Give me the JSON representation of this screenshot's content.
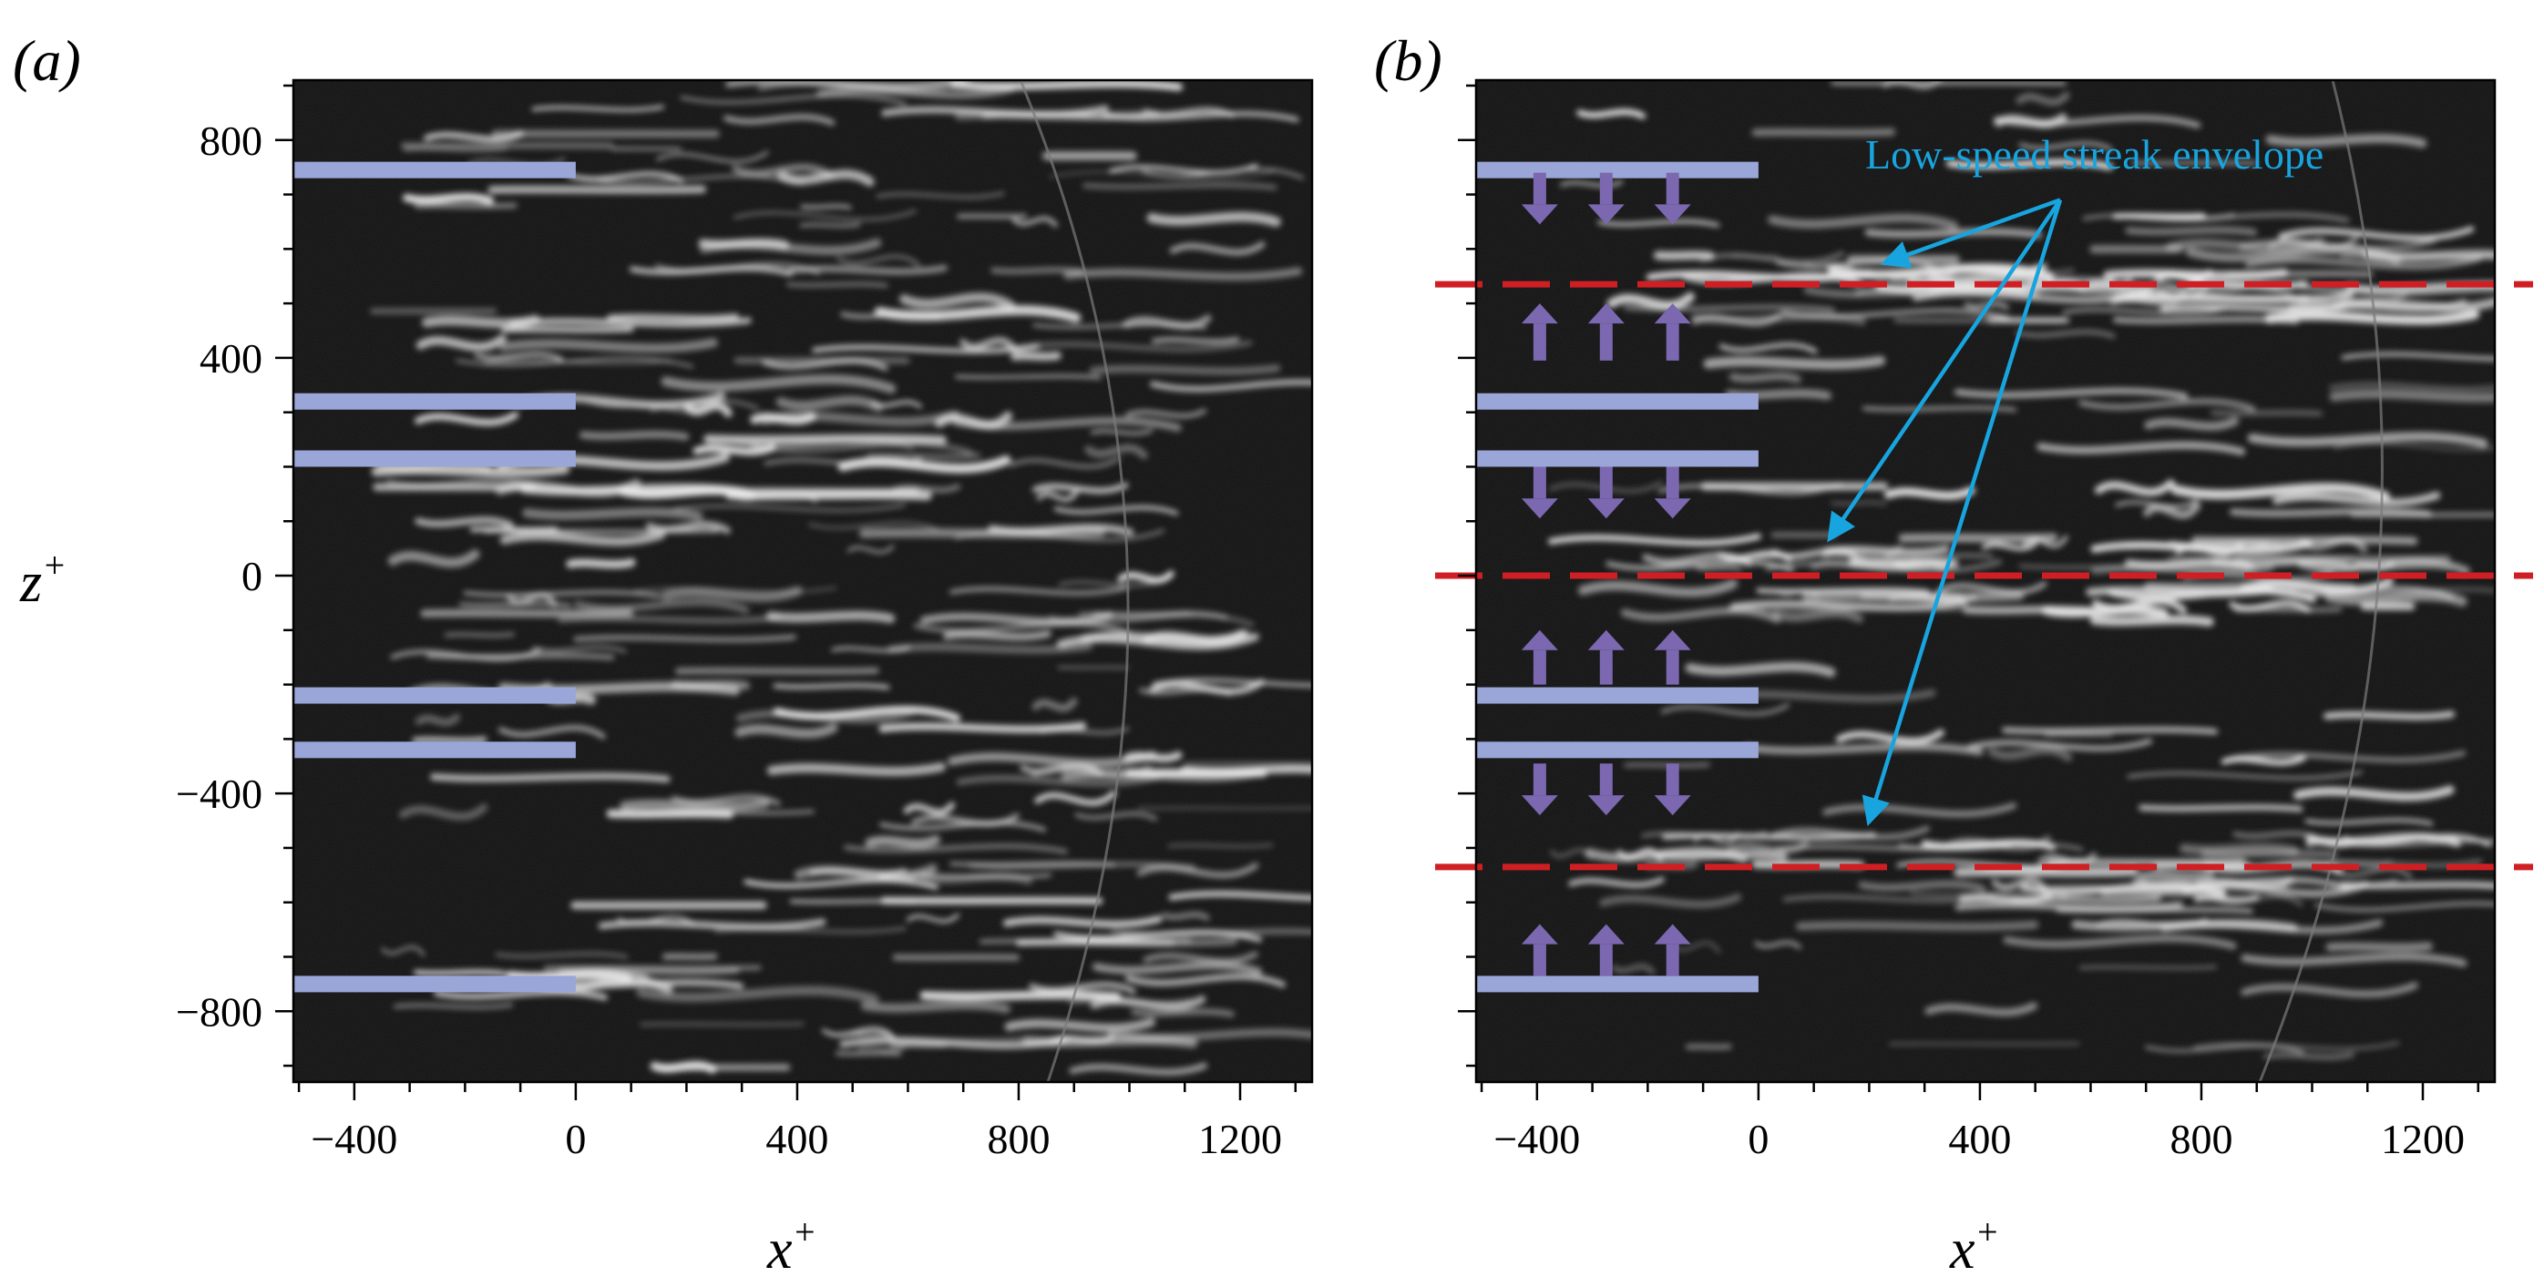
{
  "figure": {
    "panels": [
      {
        "id": "a",
        "label": "(a)",
        "xlabel": "x",
        "xlabel_sup": "+",
        "ylabel": "z",
        "ylabel_sup": "+",
        "xticks": [
          -400,
          0,
          400,
          800,
          1200
        ],
        "yticks": [
          800,
          400,
          0,
          -400,
          -800
        ],
        "xticks_text": [
          "−400",
          "0",
          "400",
          "800",
          "1200"
        ],
        "yticks_text": [
          "800",
          "400",
          "0",
          "−400",
          "−800"
        ],
        "xlim": [
          -510,
          1330
        ],
        "ylim": [
          -930,
          910
        ]
      },
      {
        "id": "b",
        "label": "(b)",
        "xlabel": "x",
        "xlabel_sup": "+",
        "xticks": [
          -400,
          0,
          400,
          800,
          1200
        ],
        "xticks_text": [
          "−400",
          "0",
          "400",
          "800",
          "1200"
        ],
        "xlim": [
          -510,
          1330
        ],
        "ylim": [
          -930,
          910
        ],
        "annotation": "Low-speed streak envelope",
        "envelope_lines_z": [
          535,
          0,
          -535
        ],
        "arrow_targets": [
          {
            "x": 230,
            "z": 575
          },
          {
            "x": 130,
            "z": 70
          },
          {
            "x": 200,
            "z": -450
          }
        ],
        "arrow_origin": {
          "x": 545,
          "z": 690
        }
      }
    ],
    "actuator_strips_z": [
      745,
      320,
      215,
      -220,
      -320,
      -750
    ],
    "actuator_strip_x": [
      -510,
      0
    ],
    "flow_arrows_b": [
      {
        "z_from": 740,
        "z_to": 645,
        "direction": "down"
      },
      {
        "z_from": 395,
        "z_to": 500,
        "direction": "up"
      },
      {
        "z_from": 200,
        "z_to": 105,
        "direction": "down"
      },
      {
        "z_from": -200,
        "z_to": -100,
        "direction": "up"
      },
      {
        "z_from": -345,
        "z_to": -440,
        "direction": "down"
      },
      {
        "z_from": -735,
        "z_to": -640,
        "direction": "up"
      }
    ],
    "flow_arrow_x": [
      -395,
      -275,
      -155
    ],
    "colors": {
      "background_image": "#121212",
      "streaks": "#e9e9e9",
      "actuator": "#9aa6d8",
      "flow_arrow": "#7b68b0",
      "envelope_line": "#d01f24",
      "annotation": "#18a4de",
      "axis": "#000000"
    }
  }
}
